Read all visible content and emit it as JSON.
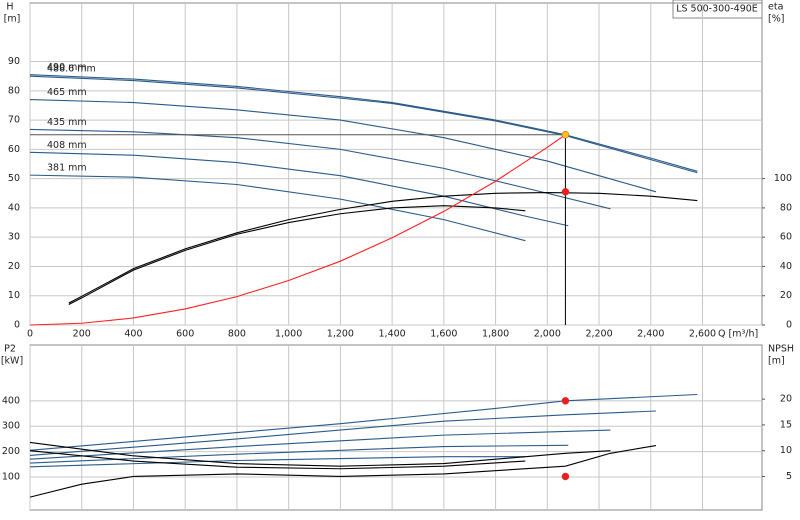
{
  "title": "LS 500-300-490E",
  "chart_data": [
    {
      "type": "line",
      "y_label": "H",
      "y_unit": "[m]",
      "y2_label": "eta",
      "y2_unit": "[%]",
      "x_label": "Q [m³/h]",
      "xlim": [
        0,
        2830
      ],
      "ylim": [
        0,
        110
      ],
      "y2lim": [
        0,
        220
      ],
      "grid": true,
      "xticks": [
        0,
        200,
        400,
        600,
        800,
        {
          "value": 1000,
          "label": "1,000"
        },
        {
          "value": 1200,
          "label": "1,200"
        },
        {
          "value": 1400,
          "label": "1,400"
        },
        {
          "value": 1600,
          "label": "1,600"
        },
        {
          "value": 1800,
          "label": "1,800"
        },
        {
          "value": 2000,
          "label": "2,000"
        },
        {
          "value": 2200,
          "label": "2,200"
        },
        {
          "value": 2400,
          "label": "2,400"
        },
        {
          "value": 2600,
          "label": "2,600"
        }
      ],
      "yticks": [
        0,
        10,
        20,
        30,
        40,
        50,
        60,
        70,
        80,
        90
      ],
      "y2ticks": [
        0,
        20,
        40,
        60,
        80,
        100
      ],
      "series": [
        {
          "name": "490 mm",
          "color": "#2b5a8a",
          "x": [
            0,
            400,
            800,
            1200,
            1400,
            1800,
            2070,
            2400,
            2580
          ],
          "values": [
            85.5,
            84,
            81.5,
            78,
            76,
            70,
            65,
            57,
            52.5
          ]
        },
        {
          "name": "488.6 mm",
          "color": "#2b5a8a",
          "x": [
            0,
            400,
            800,
            1200,
            1400,
            1800,
            2070,
            2400,
            2580
          ],
          "values": [
            85,
            83.5,
            81,
            77.5,
            75.7,
            69.7,
            64.7,
            56.5,
            52
          ]
        },
        {
          "name": "465 mm",
          "color": "#2b5a8a",
          "x": [
            0,
            400,
            800,
            1200,
            1600,
            2000,
            2200,
            2420
          ],
          "values": [
            77,
            76,
            73.5,
            70,
            64,
            56,
            51,
            45.5
          ]
        },
        {
          "name": "435 mm",
          "color": "#2b5a8a",
          "x": [
            0,
            400,
            800,
            1200,
            1600,
            2000,
            2244
          ],
          "values": [
            66.8,
            66,
            64,
            60,
            53.5,
            45,
            39.7
          ]
        },
        {
          "name": "408 mm",
          "color": "#2b5a8a",
          "x": [
            0,
            400,
            800,
            1200,
            1600,
            1900,
            2081
          ],
          "values": [
            59,
            58,
            55.5,
            51,
            44,
            37.5,
            33.9
          ]
        },
        {
          "name": "381 mm",
          "color": "#2b5a8a",
          "x": [
            0,
            400,
            800,
            1200,
            1600,
            1915
          ],
          "values": [
            51.2,
            50.5,
            48,
            43,
            36,
            28.8
          ]
        },
        {
          "color": "#000000",
          "axis": "y2",
          "x": [
            150,
            200,
            400,
            600,
            800,
            1000,
            1200,
            1400,
            1600,
            1800,
            2000,
            2200,
            2400,
            2580
          ],
          "values": [
            15,
            19.6,
            38.5,
            52,
            63,
            72,
            79,
            84.5,
            88,
            90,
            90.5,
            90,
            88,
            85
          ]
        },
        {
          "color": "#000000",
          "axis": "y2",
          "x": [
            150,
            200,
            400,
            600,
            800,
            1000,
            1200,
            1400,
            1600,
            1800,
            1915
          ],
          "values": [
            14,
            18.5,
            37.5,
            51,
            62,
            70,
            76,
            80,
            81.5,
            80,
            78
          ]
        },
        {
          "color": "#ff2020",
          "x": [
            0,
            200,
            400,
            600,
            800,
            1000,
            1200,
            1400,
            1600,
            1800,
            2000,
            2070
          ],
          "values": [
            0,
            0.6,
            2.4,
            5.5,
            9.7,
            15.2,
            21.8,
            29.8,
            38.8,
            49.1,
            60.7,
            65
          ]
        }
      ],
      "points": [
        {
          "x": 2070,
          "y": 65,
          "color": "#f5c518"
        },
        {
          "x": 2070,
          "y": 91,
          "color": "#ee1c1c",
          "axis": "y2"
        }
      ]
    },
    {
      "type": "line",
      "y_label": "P2",
      "y_unit": "[kW]",
      "y2_label": "NPSH",
      "y2_unit": "[m]",
      "xlim": [
        0,
        2830
      ],
      "ylim": [
        -30,
        620
      ],
      "y2lim": [
        -1.5,
        30.5
      ],
      "grid": true,
      "xticks": [
        0,
        200,
        400,
        600,
        800,
        1000,
        1200,
        1400,
        1600,
        1800,
        2000,
        2200,
        2400,
        2600
      ],
      "yticks": [
        100,
        200,
        300,
        400
      ],
      "y2ticks": [
        5,
        10,
        15,
        20
      ],
      "series": [
        {
          "color": "#2b5a8a",
          "x": [
            0,
            400,
            800,
            1200,
            1400,
            1800,
            2070,
            2580
          ],
          "values": [
            205,
            240,
            275,
            310,
            330,
            370,
            400,
            425
          ]
        },
        {
          "color": "#2b5a8a",
          "x": [
            0,
            800,
            1600,
            2070,
            2420
          ],
          "values": [
            185,
            250,
            320,
            345,
            360
          ]
        },
        {
          "color": "#2b5a8a",
          "x": [
            0,
            800,
            1600,
            2244
          ],
          "values": [
            170,
            220,
            265,
            285
          ]
        },
        {
          "color": "#2b5a8a",
          "x": [
            0,
            800,
            1600,
            2081
          ],
          "values": [
            155,
            190,
            220,
            225
          ]
        },
        {
          "color": "#2b5a8a",
          "x": [
            0,
            800,
            1600,
            1915
          ],
          "values": [
            140,
            165,
            180,
            180
          ]
        },
        {
          "color": "#000000",
          "axis": "y2",
          "x": [
            0,
            400,
            800,
            1200,
            1600,
            2070,
            2244
          ],
          "values": [
            11.6,
            9,
            7.5,
            7,
            7.5,
            9.5,
            10
          ]
        },
        {
          "color": "#000000",
          "axis": "y2",
          "x": [
            0,
            400,
            800,
            1200,
            1600,
            1915
          ],
          "values": [
            10,
            8,
            6.8,
            6.5,
            7,
            8
          ]
        },
        {
          "color": "#000000",
          "axis": "y2",
          "x": [
            0,
            200,
            400,
            800,
            1200,
            1600,
            2070,
            2244,
            2420
          ],
          "values": [
            1,
            3.5,
            5,
            5.5,
            5,
            5.5,
            7,
            9.5,
            11
          ]
        }
      ],
      "points": [
        {
          "x": 2070,
          "y": 400,
          "color": "#ee1c1c"
        },
        {
          "x": 2070,
          "y": 5,
          "color": "#ee1c1c",
          "axis": "y2"
        }
      ]
    }
  ]
}
